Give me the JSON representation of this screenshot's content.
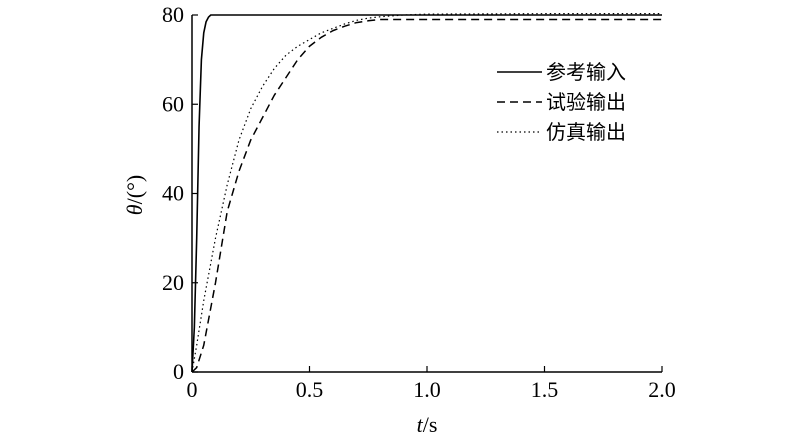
{
  "chart_data": {
    "type": "line",
    "xlabel_italic": "t",
    "xlabel_unit": "/s",
    "ylabel_italic": "θ",
    "ylabel_unit": "/(°)",
    "xlim": [
      0,
      2.0
    ],
    "ylim": [
      0,
      80
    ],
    "xticks": [
      "0",
      "0.5",
      "1.0",
      "1.5",
      "2.0"
    ],
    "yticks": [
      "0",
      "20",
      "40",
      "60",
      "80"
    ],
    "grid": false,
    "legend_position": "top-right",
    "series": [
      {
        "name": "参考输入",
        "style": "solid",
        "x": [
          0.0,
          0.01,
          0.02,
          0.03,
          0.04,
          0.05,
          0.06,
          0.07,
          0.08,
          0.1,
          0.15,
          0.3,
          0.5,
          1.0,
          1.5,
          2.0
        ],
        "y": [
          0,
          10,
          30,
          55,
          70,
          76,
          78.5,
          79.5,
          80,
          80,
          80,
          80,
          80,
          80,
          80,
          80
        ]
      },
      {
        "name": "试验输出",
        "style": "dashed",
        "x": [
          0.0,
          0.02,
          0.05,
          0.1,
          0.15,
          0.2,
          0.25,
          0.3,
          0.35,
          0.4,
          0.45,
          0.5,
          0.55,
          0.6,
          0.65,
          0.7,
          0.75,
          0.8,
          0.9,
          1.0,
          1.5,
          2.0
        ],
        "y": [
          0,
          1,
          6,
          20,
          36,
          45,
          52,
          57,
          62,
          66,
          70,
          73,
          75,
          76.5,
          77.5,
          78.3,
          78.7,
          79,
          79,
          79,
          79,
          79
        ]
      },
      {
        "name": "仿真输出",
        "style": "dotted",
        "x": [
          0.0,
          0.02,
          0.05,
          0.1,
          0.15,
          0.2,
          0.25,
          0.3,
          0.35,
          0.4,
          0.45,
          0.5,
          0.55,
          0.6,
          0.65,
          0.7,
          0.75,
          0.8,
          0.9,
          1.0,
          1.5,
          2.0
        ],
        "y": [
          0,
          6,
          16,
          30,
          42,
          52,
          59,
          64,
          68,
          71,
          73,
          74.5,
          76,
          77,
          78,
          78.8,
          79.3,
          79.6,
          80,
          80.2,
          80.3,
          80.3
        ]
      }
    ]
  }
}
